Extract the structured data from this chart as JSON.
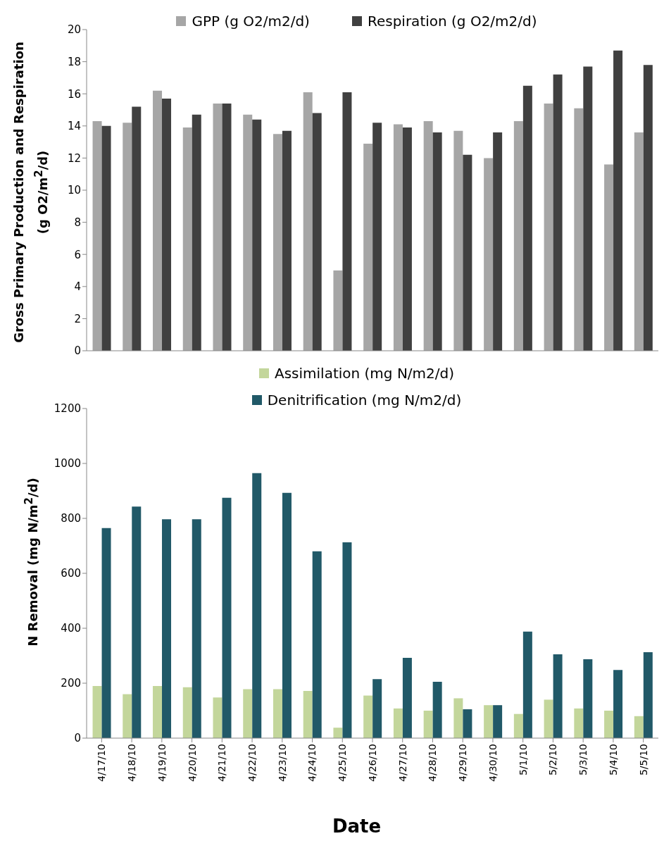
{
  "chart_data": [
    {
      "type": "bar",
      "ylabel": "Gross Primary Production and Respiration (g O2/m$^{2}$/d)",
      "categories": [
        null,
        null,
        null,
        null,
        null,
        null,
        null,
        null,
        null,
        null,
        null,
        null,
        null,
        null,
        null,
        null,
        null,
        null,
        null
      ],
      "tick_labels": "y",
      "ylim": [
        0,
        20
      ],
      "yticks": [
        0,
        2,
        4,
        6,
        8,
        10,
        12,
        14,
        16,
        18,
        20
      ],
      "legend": "top",
      "grid": false,
      "series": [
        {
          "name": "GPP (g O2/m2/d)",
          "color": "#a6a6a6",
          "values": [
            14.3,
            14.2,
            16.2,
            13.9,
            15.4,
            14.7,
            13.5,
            16.1,
            5.0,
            12.9,
            14.1,
            14.3,
            13.7,
            12.0,
            14.3,
            15.4,
            15.1,
            11.6,
            13.6
          ]
        },
        {
          "name": "Respiration (g O2/m2/d)",
          "color": "#404040",
          "values": [
            14.0,
            15.2,
            15.7,
            14.7,
            15.4,
            14.4,
            13.7,
            14.8,
            16.1,
            14.2,
            13.9,
            13.6,
            12.2,
            13.6,
            16.5,
            17.2,
            17.7,
            18.7,
            17.8
          ]
        }
      ]
    },
    {
      "type": "bar",
      "xlabel": "Date",
      "ylabel": "N Removal (mg N/m$^{2}$/d)",
      "categories": [
        "4/17/10",
        "4/18/10",
        "4/19/10",
        "4/20/10",
        "4/21/10",
        "4/22/10",
        "4/23/10",
        "4/24/10",
        "4/25/10",
        "4/26/10",
        "4/27/10",
        "4/28/10",
        "4/29/10",
        "4/30/10",
        "5/1/10",
        "5/2/10",
        "5/3/10",
        "5/4/10",
        "5/5/10"
      ],
      "ylim": [
        0,
        1200
      ],
      "yticks": [
        0,
        200,
        400,
        600,
        800,
        1000,
        1200
      ],
      "legend": "top",
      "grid": false,
      "series": [
        {
          "name": "Assimilation (mg N/m2/d)",
          "color": "#c3d69b",
          "values": [
            190,
            160,
            190,
            185,
            148,
            178,
            178,
            172,
            38,
            155,
            108,
            100,
            145,
            120,
            88,
            140,
            108,
            100,
            80
          ]
        },
        {
          "name": "Denitrification (mg N/m2/d)",
          "color": "#215968",
          "values": [
            765,
            843,
            797,
            797,
            875,
            965,
            893,
            680,
            713,
            215,
            292,
            205,
            105,
            120,
            388,
            305,
            287,
            248,
            313
          ]
        }
      ]
    }
  ]
}
